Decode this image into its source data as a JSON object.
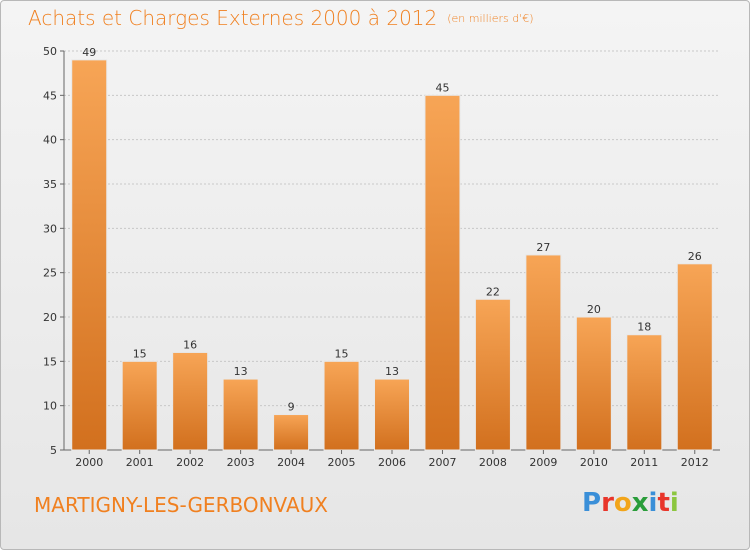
{
  "header": {
    "title": "Achats et Charges Externes 2000 à 2012",
    "unit": "(en milliers d'€)"
  },
  "footer": {
    "commune": "MARTIGNY-LES-GERBONVAUX",
    "logo_letters": [
      "P",
      "r",
      "o",
      "x",
      "i",
      "t",
      "i"
    ],
    "logo_colors": [
      "#3a8fd8",
      "#e8352a",
      "#f2a51a",
      "#2a9d3a",
      "#3a8fd8",
      "#e8352a",
      "#8cc63f"
    ]
  },
  "colors": {
    "accent": "#f08020",
    "bar_light": "#f7a556",
    "bar_dark": "#d2701e",
    "grid": "#c8c8c8"
  },
  "chart_data": {
    "type": "bar",
    "title": "Achats et Charges Externes 2000 à 2012",
    "subtitle": "(en milliers d'€)",
    "categories": [
      "2000",
      "2001",
      "2002",
      "2003",
      "2004",
      "2005",
      "2006",
      "2007",
      "2008",
      "2009",
      "2010",
      "2011",
      "2012"
    ],
    "values": [
      49,
      15,
      16,
      13,
      9,
      15,
      13,
      45,
      22,
      27,
      20,
      18,
      26
    ],
    "ylim": [
      5,
      50
    ],
    "yticks": [
      5,
      10,
      15,
      20,
      25,
      30,
      35,
      40,
      45,
      50
    ],
    "grid": true,
    "xlabel": "",
    "ylabel": ""
  }
}
